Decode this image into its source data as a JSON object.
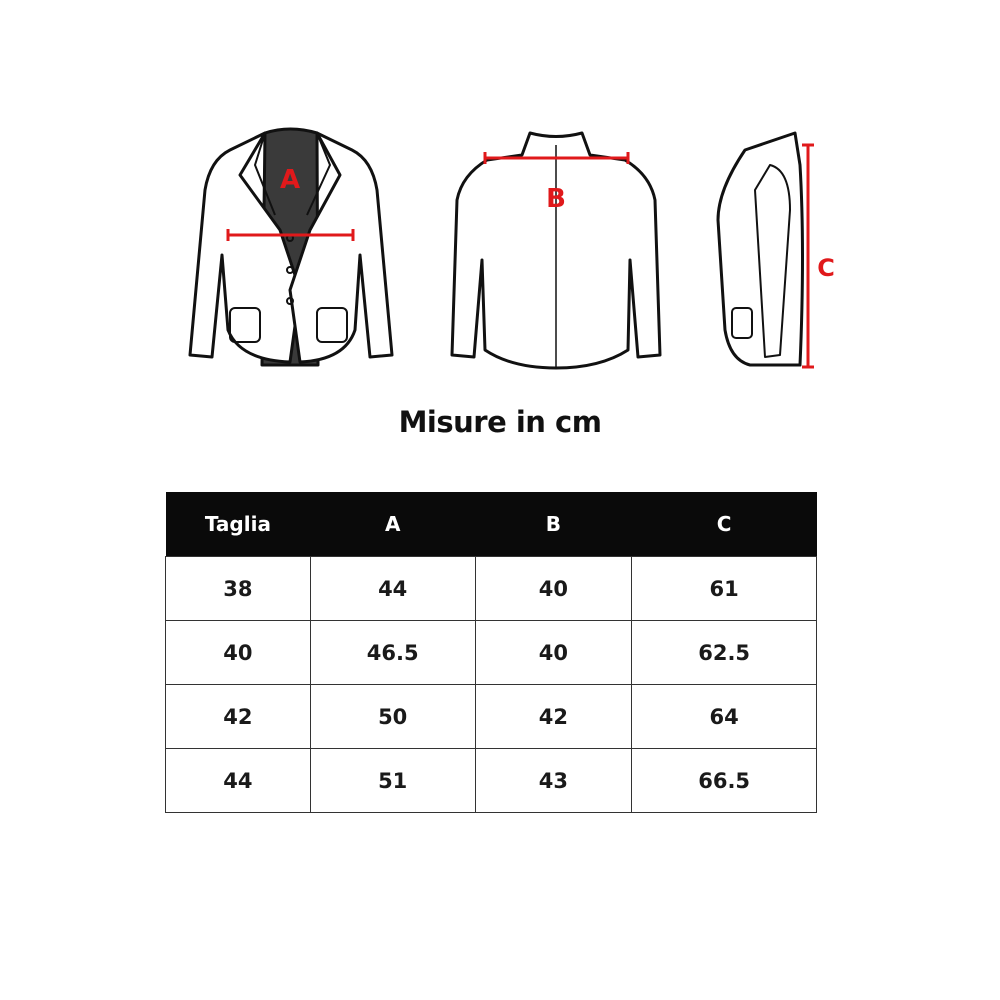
{
  "illustration": {
    "labels": {
      "a": "A",
      "b": "B",
      "c": "C"
    },
    "measure_color": "#e0191b"
  },
  "title": "Misure in cm",
  "table": {
    "headers": [
      "Taglia",
      "A",
      "B",
      "C"
    ],
    "rows": [
      [
        "38",
        "44",
        "40",
        "61"
      ],
      [
        "40",
        "46.5",
        "40",
        "62.5"
      ],
      [
        "42",
        "50",
        "42",
        "64"
      ],
      [
        "44",
        "51",
        "43",
        "66.5"
      ]
    ]
  }
}
